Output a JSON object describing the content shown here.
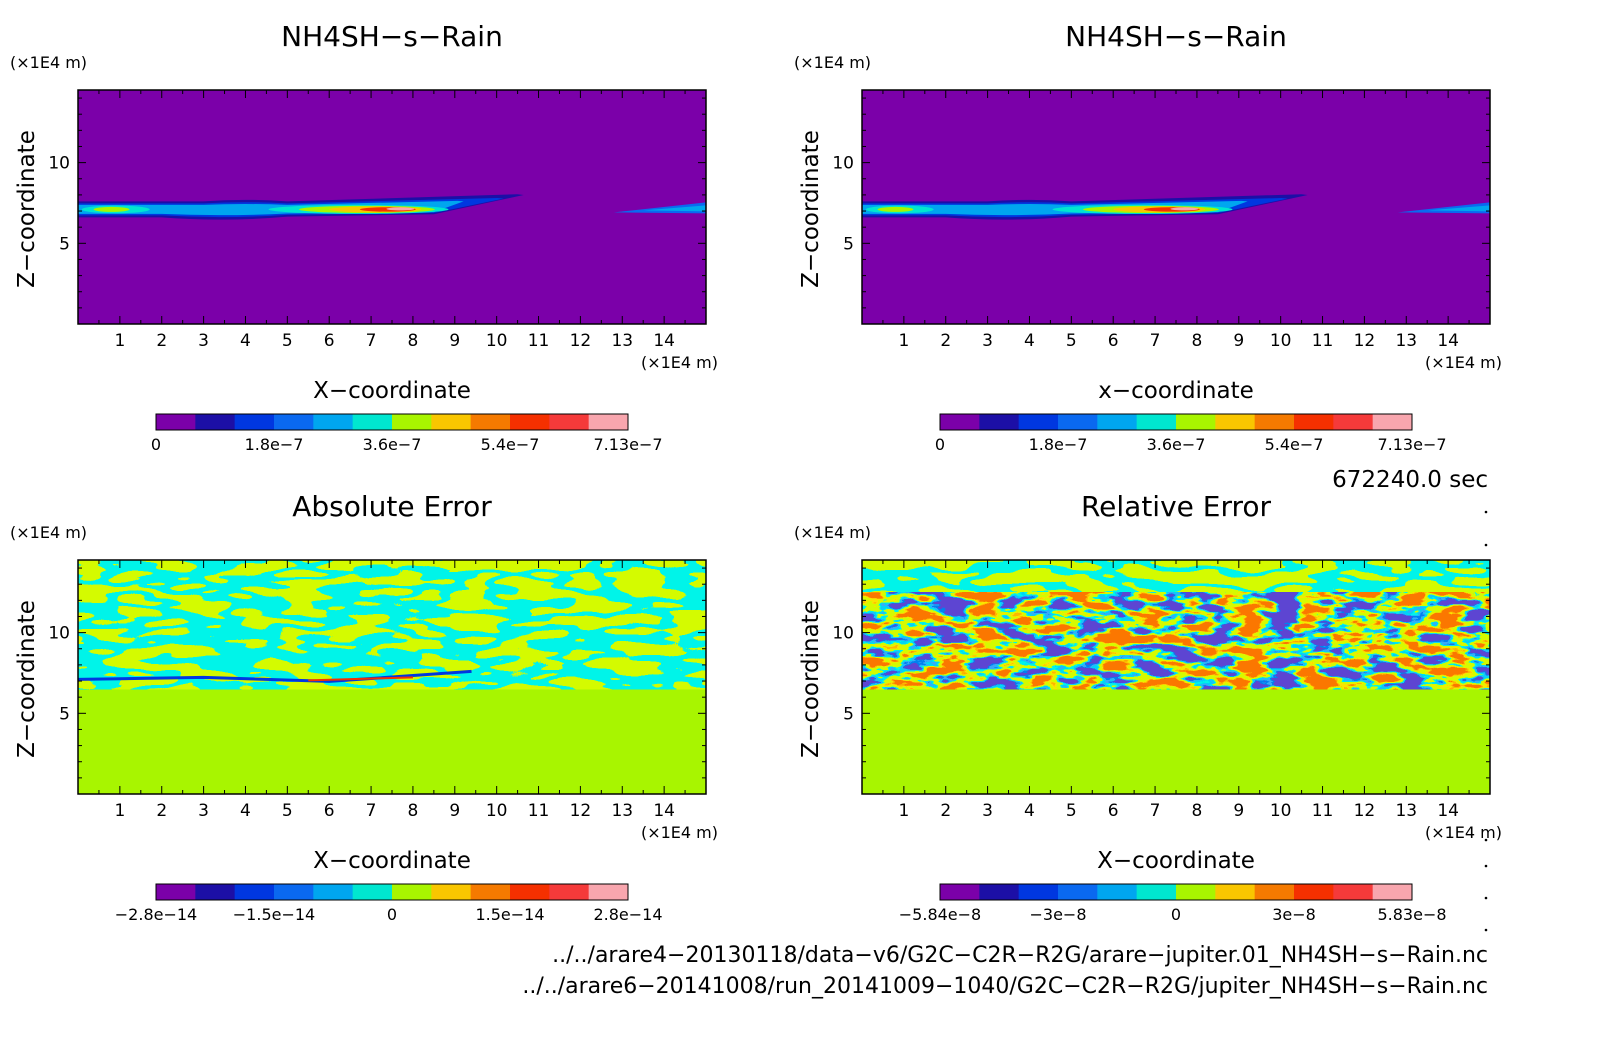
{
  "panels": [
    {
      "title": "NH4SH−s−Rain",
      "xlabel": "X−coordinate",
      "ylabel": "Z−coordinate",
      "x_unit": "(×1E4 m)",
      "y_unit": "(×1E4 m)",
      "x_ticks": [
        "1",
        "2",
        "3",
        "4",
        "5",
        "6",
        "7",
        "8",
        "9",
        "10",
        "11",
        "12",
        "13",
        "14"
      ],
      "y_ticks": [
        "5",
        "10"
      ],
      "colorbar_labels": [
        "0",
        "1.8e−7",
        "3.6e−7",
        "5.4e−7",
        "7.13e−7"
      ]
    },
    {
      "title": "NH4SH−s−Rain",
      "xlabel": "x−coordinate",
      "ylabel": "Z−coordinate",
      "x_unit": "(×1E4 m)",
      "y_unit": "(×1E4 m)",
      "x_ticks": [
        "1",
        "2",
        "3",
        "4",
        "5",
        "6",
        "7",
        "8",
        "9",
        "10",
        "11",
        "12",
        "13",
        "14"
      ],
      "y_ticks": [
        "5",
        "10"
      ],
      "colorbar_labels": [
        "0",
        "1.8e−7",
        "3.6e−7",
        "5.4e−7",
        "7.13e−7"
      ]
    },
    {
      "title": "Absolute Error",
      "xlabel": "X−coordinate",
      "ylabel": "Z−coordinate",
      "x_unit": "(×1E4 m)",
      "y_unit": "(×1E4 m)",
      "x_ticks": [
        "1",
        "2",
        "3",
        "4",
        "5",
        "6",
        "7",
        "8",
        "9",
        "10",
        "11",
        "12",
        "13",
        "14"
      ],
      "y_ticks": [
        "5",
        "10"
      ],
      "colorbar_labels": [
        "−2.8e−14",
        "−1.5e−14",
        "0",
        "1.5e−14",
        "2.8e−14"
      ]
    },
    {
      "title": "Relative Error",
      "xlabel": "X−coordinate",
      "ylabel": "Z−coordinate",
      "x_unit": "(×1E4 m)",
      "y_unit": "(×1E4 m)",
      "x_ticks": [
        "1",
        "2",
        "3",
        "4",
        "5",
        "6",
        "7",
        "8",
        "9",
        "10",
        "11",
        "12",
        "13",
        "14"
      ],
      "y_ticks": [
        "5",
        "10"
      ],
      "colorbar_labels": [
        "−5.84e−8",
        "−3e−8",
        "0",
        "3e−8",
        "5.83e−8"
      ]
    }
  ],
  "time_label": "672240.0 sec",
  "footer": [
    "../../arare4−20130118/data−v6/G2C−C2R−R2G/arare−jupiter.01_NH4SH−s−Rain.nc",
    "../../arare6−20141008/run_20141009−1040/G2C−C2R−R2G/jupiter_NH4SH−s−Rain.nc"
  ],
  "colors": {
    "palette": [
      "#7b00a9",
      "#1c0fa6",
      "#0037e0",
      "#0a69f0",
      "#00a6ef",
      "#00e6d0",
      "#a8f500",
      "#f9c600",
      "#f57a00",
      "#f53000",
      "#f53a3a",
      "#f8a6ae"
    ],
    "background_field": "#7b00a9",
    "zero_field": "#a8f500"
  },
  "chart_data": [
    {
      "type": "heatmap",
      "title": "NH4SH−s−Rain",
      "xlabel": "X−coordinate",
      "ylabel": "Z−coordinate",
      "xlim": [
        0,
        15
      ],
      "ylim": [
        0,
        14.5
      ],
      "x_unit": "×1E4 m",
      "y_unit": "×1E4 m",
      "colorbar": {
        "min": 0,
        "max": 7.13e-07,
        "labels": [
          "0",
          "1.8e−7",
          "3.6e−7",
          "5.4e−7",
          "7.13e−7"
        ]
      },
      "features": [
        {
          "kind": "cloud_layer",
          "x_range": [
            0,
            10.5
          ],
          "z_range": [
            6.8,
            7.6
          ],
          "peak_x": 7,
          "peak_z": 7.1,
          "peak_value": 7.13e-07
        },
        {
          "kind": "cloud_layer",
          "x_range": [
            12.8,
            15
          ],
          "z_range": [
            6.9,
            7.4
          ],
          "peak_value": 1.8e-07
        }
      ]
    },
    {
      "type": "heatmap",
      "title": "NH4SH−s−Rain",
      "xlabel": "x−coordinate",
      "ylabel": "Z−coordinate",
      "xlim": [
        0,
        15
      ],
      "ylim": [
        0,
        14.5
      ],
      "x_unit": "×1E4 m",
      "y_unit": "×1E4 m",
      "colorbar": {
        "min": 0,
        "max": 7.13e-07,
        "labels": [
          "0",
          "1.8e−7",
          "3.6e−7",
          "5.4e−7",
          "7.13e−7"
        ]
      },
      "features": [
        {
          "kind": "cloud_layer",
          "x_range": [
            0,
            10.5
          ],
          "z_range": [
            6.8,
            7.6
          ],
          "peak_x": 7,
          "peak_z": 7.1,
          "peak_value": 7.13e-07
        },
        {
          "kind": "cloud_layer",
          "x_range": [
            12.8,
            15
          ],
          "z_range": [
            6.9,
            7.4
          ],
          "peak_value": 1.8e-07
        }
      ]
    },
    {
      "type": "heatmap",
      "title": "Absolute Error",
      "xlabel": "X−coordinate",
      "ylabel": "Z−coordinate",
      "xlim": [
        0,
        15
      ],
      "ylim": [
        0,
        14.5
      ],
      "x_unit": "×1E4 m",
      "y_unit": "×1E4 m",
      "colorbar": {
        "min": -2.8e-14,
        "max": 2.8e-14,
        "labels": [
          "−2.8e−14",
          "−1.5e−14",
          "0",
          "1.5e−14",
          "2.8e−14"
        ]
      },
      "features": [
        {
          "kind": "noise",
          "z_range": [
            6.5,
            14.5
          ],
          "value_range": [
            -5e-15,
            5e-15
          ]
        },
        {
          "kind": "zero",
          "z_range": [
            0,
            6.5
          ],
          "value": 0
        }
      ]
    },
    {
      "type": "heatmap",
      "title": "Relative Error",
      "xlabel": "X−coordinate",
      "ylabel": "Z−coordinate",
      "xlim": [
        0,
        15
      ],
      "ylim": [
        0,
        14.5
      ],
      "x_unit": "×1E4 m",
      "y_unit": "×1E4 m",
      "colorbar": {
        "min": -5.84e-08,
        "max": 5.83e-08,
        "labels": [
          "−5.84e−8",
          "−3e−8",
          "0",
          "3e−8",
          "5.83e−8"
        ]
      },
      "features": [
        {
          "kind": "noise",
          "z_range": [
            12.5,
            14.5
          ],
          "value_range": [
            -5e-09,
            5e-09
          ]
        },
        {
          "kind": "noise",
          "z_range": [
            6.5,
            12.5
          ],
          "value_range": [
            -5.84e-08,
            5.83e-08
          ]
        },
        {
          "kind": "zero",
          "z_range": [
            0,
            6.5
          ],
          "value": 0
        }
      ]
    }
  ]
}
